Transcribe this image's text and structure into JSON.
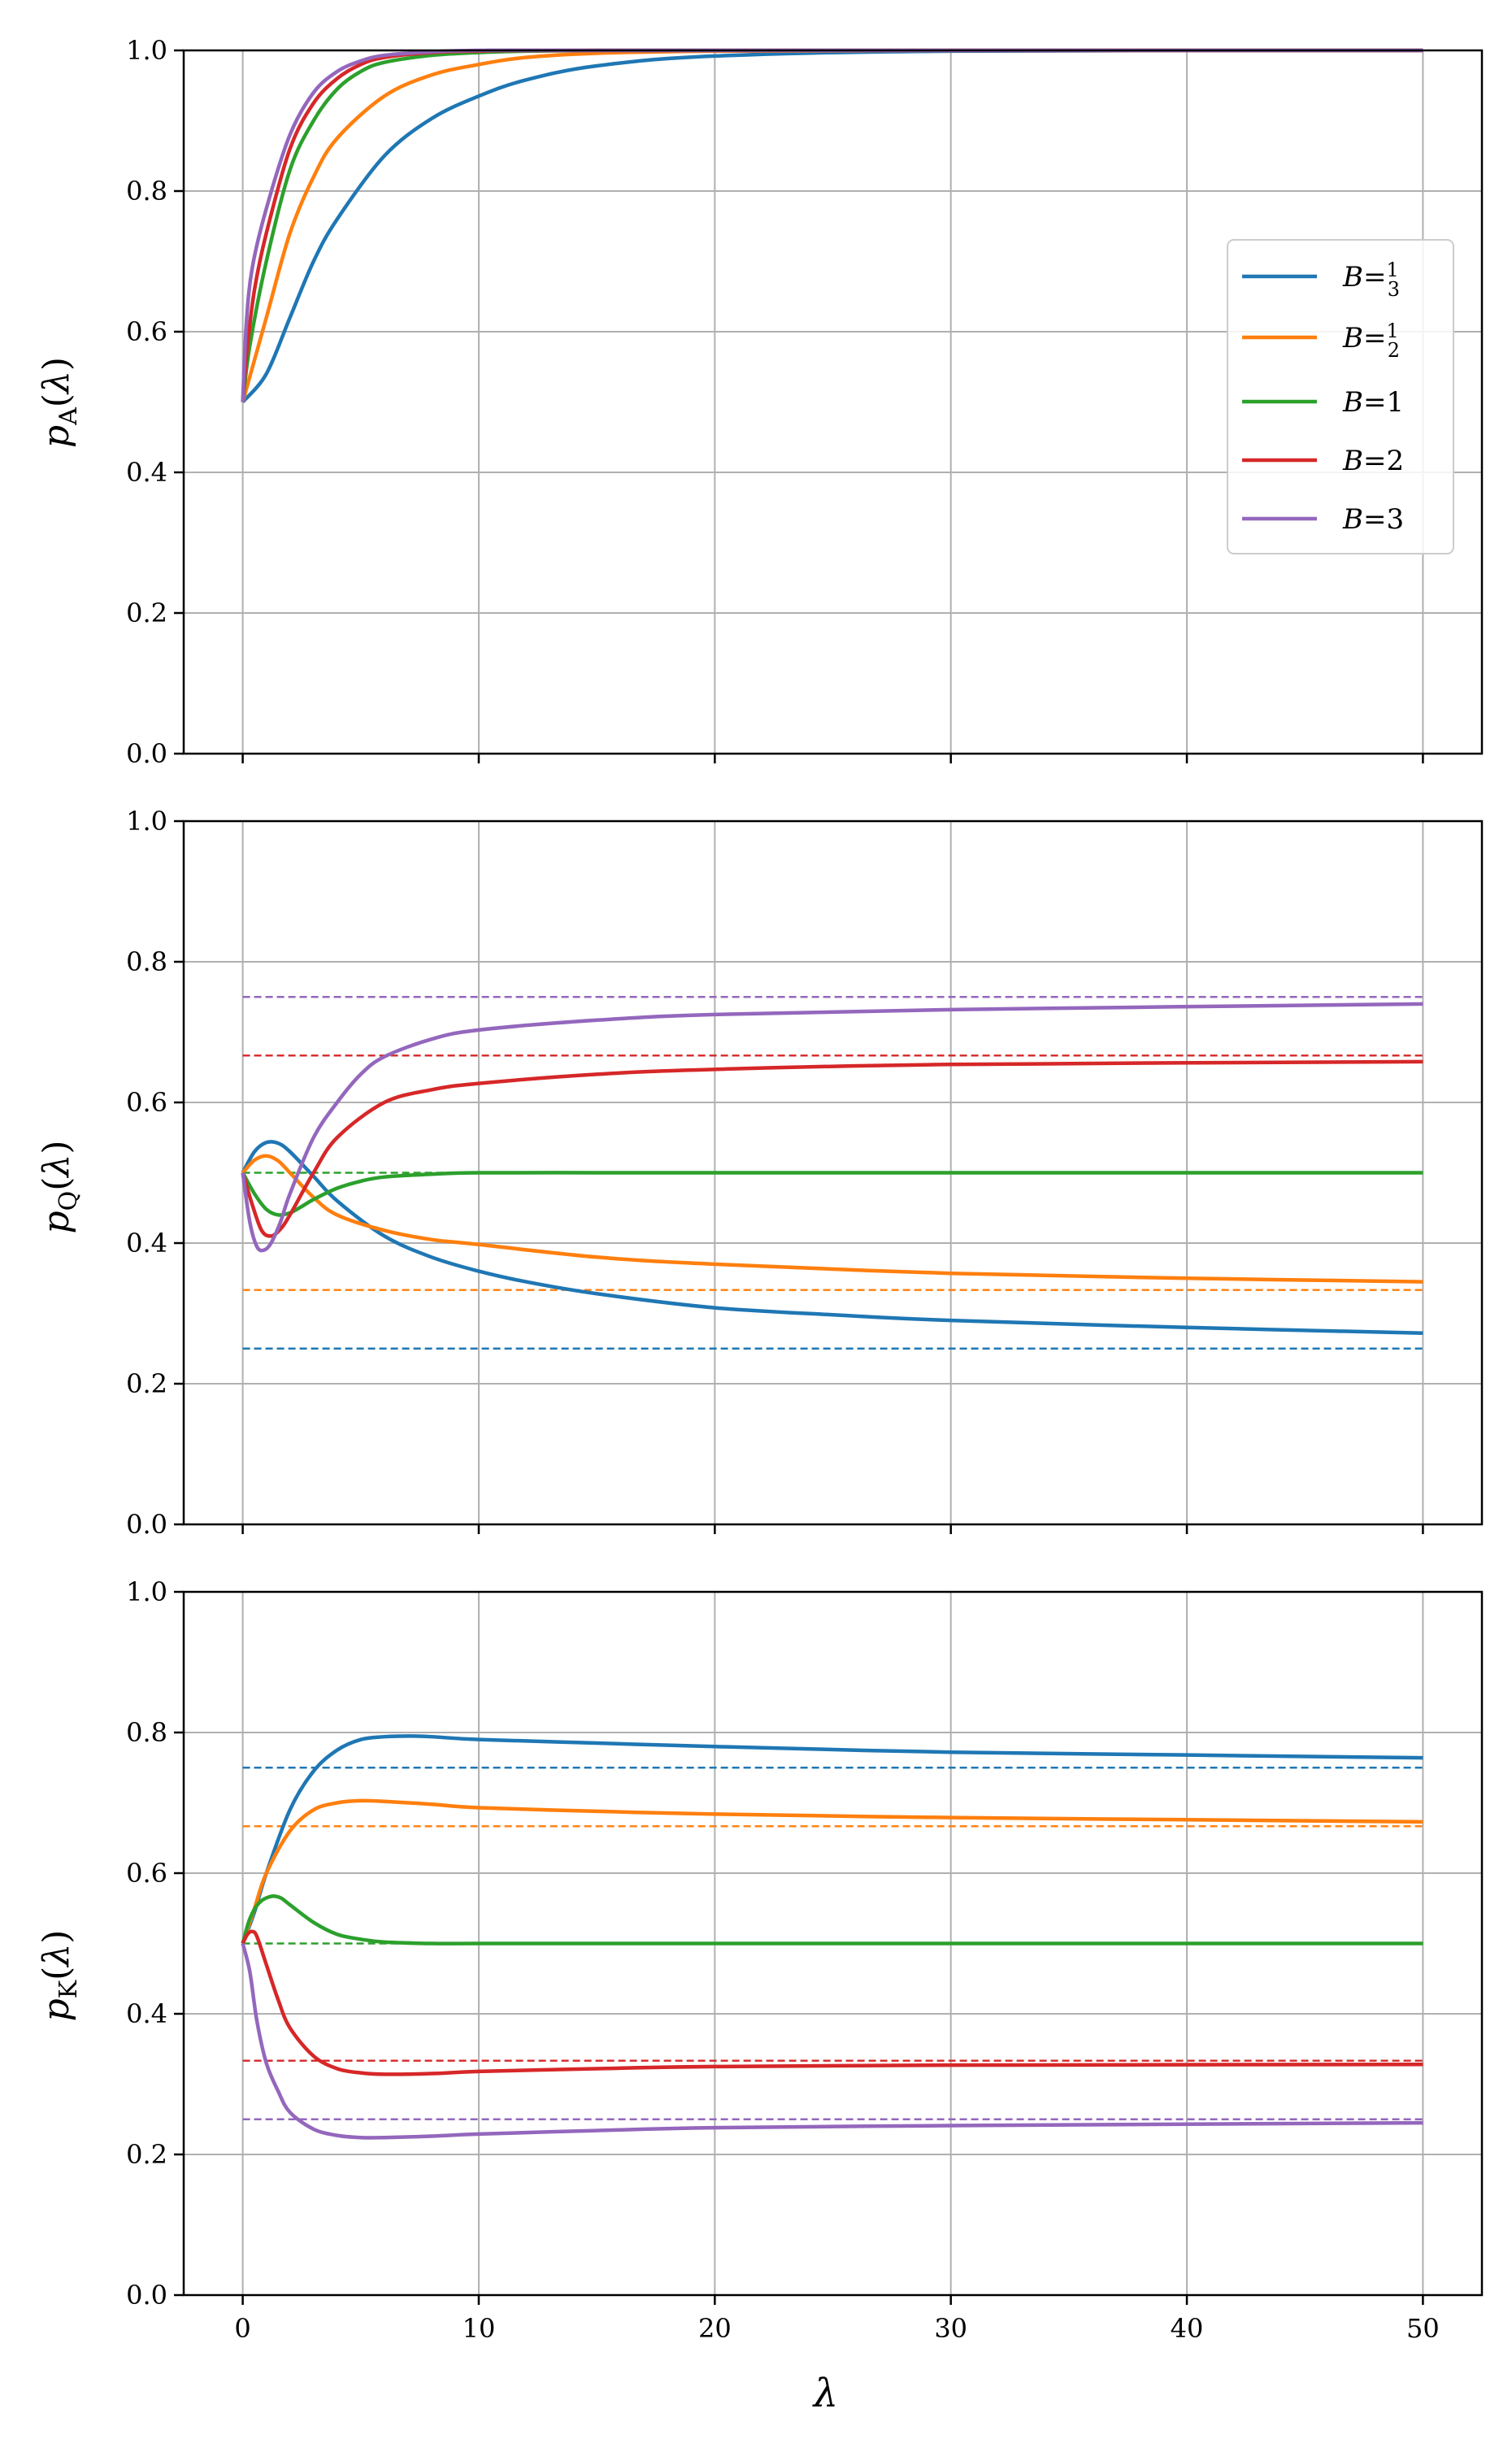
{
  "chart_data": [
    {
      "type": "line",
      "panel": "top",
      "ylabel": "p_A(λ)",
      "xlim": [
        -2.5,
        52.5
      ],
      "ylim": [
        0,
        1
      ],
      "xticks": [
        "0",
        "10",
        "20",
        "30",
        "40",
        "50"
      ],
      "yticks": [
        "0.0",
        "0.2",
        "0.4",
        "0.6",
        "0.8",
        "1.0"
      ],
      "grid": true,
      "legend_position": "center-right",
      "series": [
        {
          "name": "B = 1/3",
          "color": "#1f77b4",
          "x": [
            0,
            1,
            2,
            3,
            4,
            6,
            8,
            10,
            12,
            15,
            20,
            30,
            50
          ],
          "y": [
            0.5,
            0.54,
            0.62,
            0.7,
            0.76,
            0.85,
            0.903,
            0.935,
            0.958,
            0.978,
            0.992,
            0.999,
            1.0
          ]
        },
        {
          "name": "B = 1/2",
          "color": "#ff7f0e",
          "x": [
            0,
            1,
            2,
            3,
            4,
            6,
            8,
            10,
            12,
            15,
            20,
            30,
            50
          ],
          "y": [
            0.5,
            0.62,
            0.74,
            0.82,
            0.875,
            0.935,
            0.965,
            0.98,
            0.99,
            0.996,
            0.999,
            1.0,
            1.0
          ]
        },
        {
          "name": "B = 1",
          "color": "#2ca02c",
          "x": [
            0,
            0.3,
            1,
            2,
            3,
            4,
            5,
            6,
            8,
            10,
            12,
            15,
            20,
            50
          ],
          "y": [
            0.5,
            0.58,
            0.7,
            0.83,
            0.9,
            0.945,
            0.97,
            0.983,
            0.993,
            0.997,
            0.999,
            1.0,
            1.0,
            1.0
          ]
        },
        {
          "name": "B = 2",
          "color": "#d62728",
          "x": [
            0,
            0.2,
            0.5,
            1,
            2,
            3,
            4,
            5,
            6,
            8,
            10,
            15,
            50
          ],
          "y": [
            0.5,
            0.58,
            0.66,
            0.74,
            0.86,
            0.925,
            0.96,
            0.98,
            0.99,
            0.997,
            0.999,
            1.0,
            1.0
          ]
        },
        {
          "name": "B = 3",
          "color": "#9467bd",
          "x": [
            0,
            0.15,
            0.4,
            1,
            2,
            3,
            4,
            5,
            6,
            8,
            10,
            15,
            50
          ],
          "y": [
            0.5,
            0.61,
            0.69,
            0.775,
            0.88,
            0.94,
            0.97,
            0.985,
            0.993,
            0.998,
            1.0,
            1.0,
            1.0
          ]
        }
      ]
    },
    {
      "type": "line",
      "panel": "middle",
      "ylabel": "p_Q(λ)",
      "xlim": [
        -2.5,
        52.5
      ],
      "ylim": [
        0,
        1
      ],
      "xticks": [
        "0",
        "10",
        "20",
        "30",
        "40",
        "50"
      ],
      "yticks": [
        "0.0",
        "0.2",
        "0.4",
        "0.6",
        "0.8",
        "1.0"
      ],
      "grid": true,
      "series": [
        {
          "name": "B = 1/3",
          "color": "#1f77b4",
          "x": [
            0,
            0.5,
            1,
            1.5,
            2,
            3,
            4,
            6,
            8,
            10,
            12,
            15,
            20,
            25,
            30,
            40,
            50
          ],
          "y": [
            0.5,
            0.53,
            0.543,
            0.542,
            0.53,
            0.495,
            0.46,
            0.41,
            0.38,
            0.36,
            0.345,
            0.328,
            0.308,
            0.298,
            0.29,
            0.28,
            0.272
          ],
          "asymptote": 0.25
        },
        {
          "name": "B = 1/2",
          "color": "#ff7f0e",
          "x": [
            0,
            0.5,
            1,
            1.5,
            2,
            3,
            4,
            6,
            8,
            10,
            15,
            20,
            30,
            40,
            50
          ],
          "y": [
            0.5,
            0.518,
            0.524,
            0.517,
            0.5,
            0.465,
            0.44,
            0.418,
            0.405,
            0.398,
            0.38,
            0.37,
            0.357,
            0.35,
            0.345
          ],
          "asymptote": 0.3333
        },
        {
          "name": "B = 1",
          "color": "#2ca02c",
          "x": [
            0,
            0.5,
            1,
            1.5,
            2,
            2.5,
            3,
            4,
            5,
            6,
            8,
            10,
            15,
            20,
            50
          ],
          "y": [
            0.5,
            0.47,
            0.448,
            0.44,
            0.443,
            0.452,
            0.462,
            0.478,
            0.488,
            0.494,
            0.498,
            0.5,
            0.5,
            0.5,
            0.5
          ],
          "asymptote": 0.5
        },
        {
          "name": "B = 2",
          "color": "#d62728",
          "x": [
            0,
            0.4,
            0.8,
            1.2,
            1.6,
            2,
            3,
            4,
            6,
            8,
            10,
            15,
            20,
            30,
            50
          ],
          "y": [
            0.5,
            0.455,
            0.418,
            0.41,
            0.42,
            0.44,
            0.5,
            0.55,
            0.6,
            0.618,
            0.627,
            0.64,
            0.647,
            0.654,
            0.658
          ],
          "asymptote": 0.6667
        },
        {
          "name": "B = 3",
          "color": "#9467bd",
          "x": [
            0,
            0.3,
            0.6,
            0.9,
            1.2,
            1.6,
            2,
            3,
            4,
            5,
            6,
            8,
            10,
            15,
            20,
            30,
            50
          ],
          "y": [
            0.5,
            0.43,
            0.395,
            0.39,
            0.4,
            0.43,
            0.47,
            0.55,
            0.6,
            0.64,
            0.665,
            0.69,
            0.703,
            0.717,
            0.725,
            0.732,
            0.74
          ],
          "asymptote": 0.75
        }
      ]
    },
    {
      "type": "line",
      "panel": "bottom",
      "ylabel": "p_K(λ)",
      "xlabel": "λ",
      "xlim": [
        -2.5,
        52.5
      ],
      "ylim": [
        0,
        1
      ],
      "xticks": [
        "0",
        "10",
        "20",
        "30",
        "40",
        "50"
      ],
      "yticks": [
        "0.0",
        "0.2",
        "0.4",
        "0.6",
        "0.8",
        "1.0"
      ],
      "grid": true,
      "series": [
        {
          "name": "B = 1/3",
          "color": "#1f77b4",
          "x": [
            0,
            0.5,
            1,
            2,
            3,
            4,
            5,
            6,
            7,
            8,
            10,
            15,
            20,
            30,
            40,
            50
          ],
          "y": [
            0.5,
            0.545,
            0.6,
            0.69,
            0.745,
            0.775,
            0.79,
            0.794,
            0.795,
            0.794,
            0.79,
            0.785,
            0.78,
            0.772,
            0.768,
            0.764
          ],
          "asymptote": 0.75
        },
        {
          "name": "B = 1/2",
          "color": "#ff7f0e",
          "x": [
            0,
            0.5,
            1,
            2,
            3,
            4,
            5,
            6,
            8,
            10,
            15,
            20,
            30,
            40,
            50
          ],
          "y": [
            0.5,
            0.55,
            0.6,
            0.66,
            0.69,
            0.7,
            0.703,
            0.702,
            0.698,
            0.693,
            0.688,
            0.684,
            0.679,
            0.676,
            0.673
          ],
          "asymptote": 0.6667
        },
        {
          "name": "B = 1",
          "color": "#2ca02c",
          "x": [
            0,
            0.3,
            0.7,
            1.2,
            1.6,
            2,
            3,
            4,
            5,
            6,
            8,
            10,
            15,
            50
          ],
          "y": [
            0.5,
            0.535,
            0.558,
            0.567,
            0.565,
            0.555,
            0.53,
            0.513,
            0.506,
            0.502,
            0.5,
            0.5,
            0.5,
            0.5
          ],
          "asymptote": 0.5
        },
        {
          "name": "B = 2",
          "color": "#d62728",
          "x": [
            0,
            0.2,
            0.4,
            0.6,
            1,
            1.5,
            2,
            3,
            4,
            5,
            6,
            8,
            10,
            15,
            20,
            30,
            50
          ],
          "y": [
            0.5,
            0.513,
            0.517,
            0.51,
            0.47,
            0.42,
            0.38,
            0.34,
            0.322,
            0.316,
            0.314,
            0.315,
            0.318,
            0.322,
            0.325,
            0.327,
            0.328
          ],
          "asymptote": 0.3333
        },
        {
          "name": "B = 3",
          "color": "#9467bd",
          "x": [
            0,
            0.3,
            0.6,
            1,
            1.5,
            2,
            3,
            4,
            5,
            6,
            8,
            10,
            15,
            20,
            30,
            40,
            50
          ],
          "y": [
            0.5,
            0.46,
            0.39,
            0.33,
            0.29,
            0.26,
            0.236,
            0.227,
            0.224,
            0.224,
            0.226,
            0.229,
            0.234,
            0.238,
            0.241,
            0.243,
            0.245
          ],
          "asymptote": 0.25
        }
      ]
    }
  ],
  "legend": {
    "items": [
      {
        "var": "B",
        "eq": "=",
        "num": "1",
        "den": "3",
        "color": "#1f77b4"
      },
      {
        "var": "B",
        "eq": "=",
        "num": "1",
        "den": "2",
        "color": "#ff7f0e"
      },
      {
        "var": "B",
        "eq": "=",
        "value": "1",
        "color": "#2ca02c"
      },
      {
        "var": "B",
        "eq": "=",
        "value": "2",
        "color": "#d62728"
      },
      {
        "var": "B",
        "eq": "=",
        "value": "3",
        "color": "#9467bd"
      }
    ]
  },
  "labels": {
    "top_ylabel": {
      "p": "p",
      "sub": "A",
      "lp": "(",
      "lam": "λ",
      "rp": ")"
    },
    "mid_ylabel": {
      "p": "p",
      "sub": "Q",
      "lp": "(",
      "lam": "λ",
      "rp": ")"
    },
    "bot_ylabel": {
      "p": "p",
      "sub": "K",
      "lp": "(",
      "lam": "λ",
      "rp": ")"
    },
    "xlabel": "λ"
  }
}
